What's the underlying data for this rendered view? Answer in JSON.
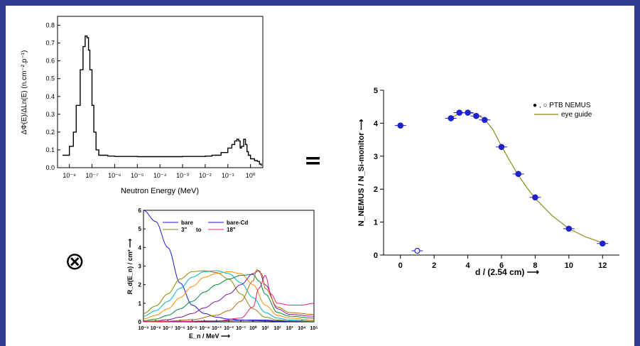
{
  "slide": {
    "equals_symbol": "=",
    "convolution_symbol": "⊗",
    "colors": {
      "frame": "#2e3d8f",
      "background": "#ffffff"
    }
  },
  "spectrum": {
    "ylabel": "ΔΦ(E)/ΔLn(E) (n.cm⁻².p⁻¹)",
    "xlabel": "Neutron Energy (MeV)",
    "yticks": [
      "0.0",
      "0.1",
      "0.2",
      "0.3",
      "0.4",
      "0.5",
      "0.6",
      "0.7",
      "0.8"
    ],
    "xticks": [
      "10⁻⁸",
      "10⁻⁷",
      "10⁻⁶",
      "10⁻⁵",
      "10⁻⁴",
      "10⁻³",
      "10⁻²",
      "10⁻¹",
      "10⁰"
    ]
  },
  "response": {
    "ylabel": "R_d(E_n) / cm² ⟶",
    "xlabel": "E_n / MeV ⟶",
    "yticks": [
      "0",
      "1",
      "2",
      "3",
      "4",
      "5",
      "6"
    ],
    "xticks": [
      "10⁻⁹",
      "10⁻⁸",
      "10⁻⁷",
      "10⁻⁶",
      "10⁻⁵",
      "10⁻⁴",
      "10⁻³",
      "10⁻²",
      "10⁻¹",
      "10⁰",
      "10¹",
      "10²",
      "10³",
      "10⁴",
      "10⁵"
    ],
    "legend": [
      {
        "label": "bare",
        "color": "#1a1ad0"
      },
      {
        "label": "bare-Cd",
        "color": "#1a1ad0"
      },
      {
        "label": "3\"",
        "color": "#8a8a00"
      },
      {
        "label": "to",
        "color": "#000000"
      },
      {
        "label": "18\"",
        "color": "#e0207a"
      }
    ]
  },
  "nemus": {
    "ylabel": "N_NEMUS / N_Si-monitor ⟶",
    "xlabel": "d / (2.54 cm) ⟶",
    "yticks": [
      "0",
      "1",
      "2",
      "3",
      "4",
      "5"
    ],
    "xticks": [
      "0",
      "2",
      "4",
      "6",
      "8",
      "10",
      "12"
    ],
    "legend": {
      "points": "● , ○  PTB NEMUS",
      "line": "eye guide"
    },
    "colors": {
      "points": "#1e22c8",
      "line": "#8a8a1a"
    }
  },
  "chart_data": [
    {
      "type": "line",
      "xscale": "log",
      "xlim": [
        3e-09,
        3.5
      ],
      "ylim": [
        0,
        0.85
      ],
      "xlabel": "Neutron Energy (MeV)",
      "ylabel": "ΔΦ(E)/ΔLn(E) (n.cm⁻².p⁻¹)",
      "series": [
        {
          "x": [
            5e-09,
            1e-08,
            1.5e-08,
            2e-08,
            3e-08,
            4e-08,
            5e-08,
            6e-08,
            7e-08,
            8e-08,
            1e-07,
            1.2e-07,
            1.5e-07,
            2e-07,
            5e-07,
            1e-06,
            1e-05,
            0.0001,
            0.001,
            0.01,
            0.02,
            0.05,
            0.1,
            0.15,
            0.2,
            0.25,
            0.3,
            0.35,
            0.4,
            0.5,
            0.6,
            0.7,
            0.8,
            1.0,
            1.5,
            2.0,
            2.5,
            3.0
          ],
          "y": [
            0.07,
            0.12,
            0.2,
            0.35,
            0.55,
            0.68,
            0.74,
            0.73,
            0.66,
            0.55,
            0.35,
            0.2,
            0.1,
            0.07,
            0.065,
            0.063,
            0.062,
            0.062,
            0.063,
            0.065,
            0.07,
            0.085,
            0.11,
            0.13,
            0.15,
            0.16,
            0.15,
            0.11,
            0.12,
            0.16,
            0.13,
            0.09,
            0.07,
            0.05,
            0.04,
            0.035,
            0.02,
            0.01
          ]
        }
      ]
    },
    {
      "type": "line",
      "xscale": "log",
      "xlim": [
        1e-09,
        100000.0
      ],
      "ylim": [
        0,
        6
      ],
      "xlabel": "E_n / MeV",
      "ylabel": "R_d(E_n) / cm²",
      "series": [
        {
          "name": "bare",
          "x": [
            1e-09,
            1e-08,
            1e-07,
            1e-06,
            1e-05,
            0.0001,
            0.001,
            0.01,
            0.1,
            1,
            10,
            100,
            100000.0
          ],
          "y": [
            6.0,
            5.4,
            4.0,
            2.1,
            0.9,
            0.45,
            0.25,
            0.15,
            0.1,
            0.07,
            0.05,
            0.03,
            0.02
          ]
        },
        {
          "name": "bare-Cd",
          "x": [
            1e-09,
            1e-06,
            0.001,
            0.1,
            1,
            10,
            100,
            100000.0
          ],
          "y": [
            0.02,
            0.03,
            0.05,
            0.08,
            0.1,
            0.1,
            0.05,
            0.02
          ]
        },
        {
          "name": "3\"",
          "x": [
            1e-09,
            1e-08,
            1e-07,
            1e-06,
            1e-05,
            0.0001,
            0.001,
            0.01,
            0.1,
            1,
            10,
            100,
            1000.0,
            100000.0
          ],
          "y": [
            0.45,
            0.85,
            1.5,
            2.3,
            2.7,
            2.75,
            2.65,
            2.3,
            1.5,
            0.7,
            0.25,
            0.1,
            0.05,
            0.03
          ]
        },
        {
          "x": [
            1e-09,
            1e-08,
            1e-07,
            1e-06,
            1e-05,
            0.0001,
            0.001,
            0.01,
            0.1,
            1,
            10,
            100,
            1000.0,
            100000.0
          ],
          "y": [
            0.3,
            0.6,
            1.1,
            1.8,
            2.4,
            2.7,
            2.75,
            2.6,
            2.1,
            1.3,
            0.5,
            0.2,
            0.1,
            0.05
          ]
        },
        {
          "x": [
            1e-09,
            1e-08,
            1e-07,
            1e-06,
            1e-05,
            0.0001,
            0.001,
            0.01,
            0.1,
            1,
            10,
            100,
            1000.0,
            100000.0
          ],
          "y": [
            0.15,
            0.35,
            0.7,
            1.3,
            1.9,
            2.4,
            2.6,
            2.7,
            2.6,
            2.0,
            0.9,
            0.35,
            0.2,
            0.1
          ]
        },
        {
          "x": [
            1e-09,
            1e-08,
            1e-07,
            1e-06,
            1e-05,
            0.0001,
            0.001,
            0.01,
            0.1,
            1,
            3,
            10,
            100,
            1000.0,
            100000.0
          ],
          "y": [
            0.05,
            0.15,
            0.35,
            0.7,
            1.1,
            1.6,
            2.0,
            2.3,
            2.5,
            2.55,
            2.2,
            1.5,
            0.5,
            0.3,
            0.2
          ]
        },
        {
          "x": [
            1e-09,
            1e-08,
            1e-07,
            1e-06,
            1e-05,
            0.0001,
            0.001,
            0.01,
            0.1,
            1,
            3,
            10,
            100,
            1000.0,
            100000.0
          ],
          "y": [
            0.02,
            0.05,
            0.12,
            0.25,
            0.45,
            0.75,
            1.1,
            1.5,
            2.0,
            2.6,
            2.75,
            2.0,
            0.7,
            0.4,
            0.3
          ]
        },
        {
          "x": [
            1e-09,
            1e-07,
            1e-05,
            0.001,
            0.01,
            0.1,
            1,
            2,
            5,
            10,
            100,
            1000.0,
            100000.0
          ],
          "y": [
            0.01,
            0.04,
            0.12,
            0.35,
            0.6,
            1.1,
            2.2,
            2.8,
            2.6,
            1.8,
            0.8,
            0.5,
            0.4
          ]
        },
        {
          "name": "18\"",
          "x": [
            1e-09,
            1e-06,
            0.001,
            0.1,
            1,
            3,
            10,
            30,
            100,
            1000.0,
            10000.0,
            100000.0
          ],
          "y": [
            0.0,
            0.01,
            0.05,
            0.2,
            0.8,
            1.8,
            2.5,
            1.5,
            1.0,
            0.9,
            0.9,
            1.0
          ]
        }
      ]
    },
    {
      "type": "scatter",
      "xlim": [
        -1,
        13
      ],
      "ylim": [
        0,
        5
      ],
      "xlabel": "d / (2.54 cm)",
      "ylabel": "N_NEMUS / N_Si-monitor",
      "series": [
        {
          "name": "PTB NEMUS",
          "x": [
            0,
            3,
            3.5,
            4,
            4.5,
            5,
            6,
            7,
            8,
            10,
            12
          ],
          "y": [
            3.93,
            4.15,
            4.32,
            4.32,
            4.22,
            4.1,
            3.28,
            2.46,
            1.75,
            0.8,
            0.35
          ]
        },
        {
          "name": "PTB NEMUS (open)",
          "x": [
            1
          ],
          "y": [
            0.13
          ]
        },
        {
          "name": "eye guide",
          "x": [
            3,
            3.5,
            4,
            4.5,
            5,
            5.5,
            6,
            6.5,
            7,
            7.5,
            8,
            9,
            10,
            11,
            12
          ],
          "y": [
            4.15,
            4.3,
            4.33,
            4.27,
            4.12,
            3.8,
            3.3,
            2.85,
            2.42,
            2.05,
            1.72,
            1.2,
            0.8,
            0.55,
            0.37
          ]
        }
      ]
    }
  ]
}
